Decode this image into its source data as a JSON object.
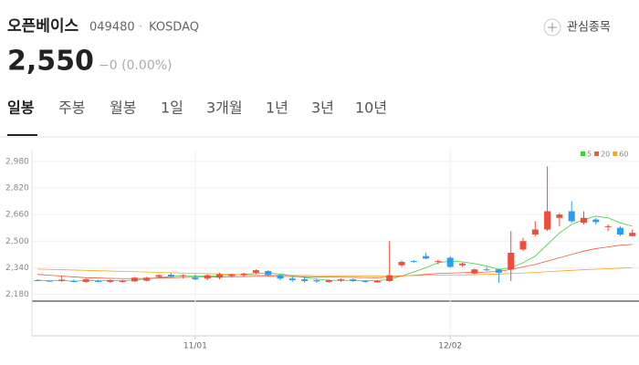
{
  "header": {
    "name": "오픈베이스",
    "code": "049480",
    "separator": "·",
    "market": "KOSDAQ",
    "watch": "관심종목",
    "price": "2,550",
    "change": "−0 (0.00%)"
  },
  "tabs": [
    "일봉",
    "주봉",
    "월봉",
    "1일",
    "3개월",
    "1년",
    "3년",
    "10년"
  ],
  "chart_data": {
    "type": "candlestick",
    "categories": [
      null,
      null,
      null,
      null,
      null,
      null,
      null,
      null,
      null,
      null,
      null,
      null,
      null,
      "11/01",
      null,
      null,
      null,
      null,
      null,
      null,
      null,
      null,
      null,
      null,
      null,
      null,
      null,
      null,
      null,
      null,
      null,
      null,
      null,
      null,
      "12/02",
      null,
      null,
      null,
      null,
      null,
      null,
      null,
      null,
      null,
      null,
      null,
      null,
      null,
      null,
      null
    ],
    "open": [
      2265,
      2262,
      2262,
      2260,
      2255,
      2262,
      2255,
      2255,
      2258,
      2262,
      2285,
      2298,
      2290,
      2280,
      2275,
      2280,
      2290,
      2295,
      2310,
      2320,
      2295,
      2275,
      2270,
      2265,
      2255,
      2262,
      2270,
      2260,
      2252,
      2260,
      2355,
      2380,
      2410,
      2375,
      2400,
      2355,
      2305,
      2330,
      2330,
      2330,
      2450,
      2540,
      2570,
      2640,
      2680,
      2610,
      2630,
      2590,
      2580,
      2530
    ],
    "high": [
      2270,
      2265,
      2290,
      2268,
      2275,
      2268,
      2270,
      2268,
      2285,
      2285,
      2300,
      2310,
      2300,
      2300,
      2300,
      2310,
      2305,
      2310,
      2330,
      2325,
      2300,
      2285,
      2285,
      2275,
      2270,
      2275,
      2275,
      2265,
      2265,
      2500,
      2385,
      2385,
      2430,
      2390,
      2410,
      2370,
      2335,
      2345,
      2335,
      2560,
      2520,
      2620,
      2950,
      2670,
      2740,
      2680,
      2640,
      2600,
      2590,
      2570
    ],
    "low": [
      2260,
      2255,
      2255,
      2252,
      2250,
      2252,
      2250,
      2250,
      2255,
      2258,
      2280,
      2280,
      2275,
      2265,
      2265,
      2270,
      2280,
      2285,
      2300,
      2290,
      2265,
      2255,
      2250,
      2250,
      2250,
      2255,
      2255,
      2250,
      2250,
      2255,
      2345,
      2370,
      2390,
      2360,
      2340,
      2345,
      2300,
      2320,
      2250,
      2260,
      2440,
      2530,
      2560,
      2590,
      2610,
      2600,
      2600,
      2560,
      2530,
      2530
    ],
    "close": [
      2262,
      2258,
      2268,
      2255,
      2270,
      2255,
      2265,
      2262,
      2280,
      2280,
      2295,
      2285,
      2295,
      2270,
      2295,
      2300,
      2300,
      2305,
      2325,
      2295,
      2275,
      2265,
      2260,
      2258,
      2265,
      2270,
      2260,
      2255,
      2260,
      2295,
      2375,
      2375,
      2395,
      2380,
      2345,
      2365,
      2330,
      2325,
      2310,
      2430,
      2500,
      2570,
      2680,
      2660,
      2620,
      2640,
      2615,
      2590,
      2540,
      2550
    ],
    "up_color": "#f04c3c",
    "down_color": "#2a9ded",
    "series": [
      {
        "name": "5",
        "color": "#3fcf3f",
        "values": [
          2265,
          2262,
          2262,
          2260,
          2262,
          2262,
          2262,
          2262,
          2266,
          2272,
          2280,
          2288,
          2292,
          2290,
          2290,
          2292,
          2296,
          2300,
          2305,
          2308,
          2302,
          2292,
          2282,
          2272,
          2264,
          2264,
          2264,
          2262,
          2262,
          2270,
          2290,
          2315,
          2340,
          2370,
          2380,
          2375,
          2365,
          2350,
          2330,
          2340,
          2370,
          2410,
          2480,
          2550,
          2600,
          2630,
          2650,
          2640,
          2610,
          2590
        ]
      },
      {
        "name": "20",
        "color": "#f05a3c",
        "values": [
          2300,
          2295,
          2290,
          2285,
          2280,
          2278,
          2276,
          2275,
          2275,
          2276,
          2278,
          2280,
          2282,
          2283,
          2284,
          2285,
          2286,
          2287,
          2288,
          2289,
          2288,
          2287,
          2286,
          2285,
          2284,
          2283,
          2282,
          2281,
          2280,
          2284,
          2290,
          2295,
          2300,
          2305,
          2308,
          2310,
          2312,
          2314,
          2318,
          2330,
          2345,
          2360,
          2380,
          2400,
          2420,
          2440,
          2455,
          2465,
          2475,
          2480
        ]
      },
      {
        "name": "60",
        "color": "#f5a623",
        "values": [
          2332,
          2330,
          2328,
          2326,
          2324,
          2322,
          2320,
          2318,
          2316,
          2314,
          2312,
          2310,
          2308,
          2306,
          2304,
          2302,
          2300,
          2298,
          2297,
          2296,
          2295,
          2294,
          2293,
          2292,
          2291,
          2290,
          2290,
          2290,
          2290,
          2291,
          2292,
          2293,
          2294,
          2295,
          2296,
          2297,
          2298,
          2300,
          2302,
          2305,
          2308,
          2312,
          2316,
          2320,
          2324,
          2328,
          2331,
          2334,
          2337,
          2340
        ]
      }
    ],
    "ylim": [
      2150,
      3045
    ],
    "yticks": [
      {
        "value": 2180,
        "label": "2,180"
      },
      {
        "value": 2340,
        "label": "2,340"
      },
      {
        "value": 2500,
        "label": "2,500"
      },
      {
        "value": 2660,
        "label": "2,660"
      },
      {
        "value": 2820,
        "label": "2,820"
      },
      {
        "value": 2980,
        "label": "2,980"
      }
    ],
    "grid": true
  }
}
